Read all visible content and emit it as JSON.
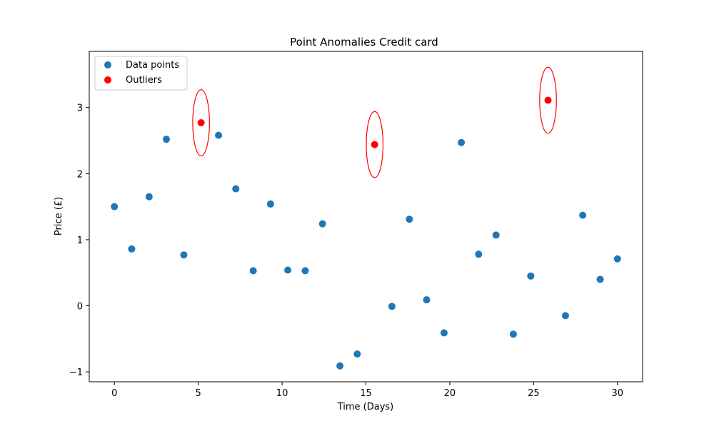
{
  "chart_data": {
    "type": "scatter",
    "title": "Point Anomalies Credit card",
    "xlabel": "Time (Days)",
    "ylabel": "Price (£)",
    "xlim": [
      -1.5,
      31.5
    ],
    "ylim": [
      -1.15,
      3.85
    ],
    "xticks": [
      0,
      5,
      10,
      15,
      20,
      25,
      30
    ],
    "yticks": [
      -1,
      0,
      1,
      2,
      3
    ],
    "ytick_labels": [
      "−1",
      "0",
      "1",
      "2",
      "3"
    ],
    "grid": false,
    "legend_position": "top-left",
    "series": [
      {
        "name": "Data points",
        "color": "#1f77b4",
        "points": [
          [
            0.0,
            1.5
          ],
          [
            1.03,
            0.86
          ],
          [
            2.07,
            1.65
          ],
          [
            3.1,
            2.52
          ],
          [
            4.14,
            0.77
          ],
          [
            6.21,
            2.58
          ],
          [
            7.24,
            1.77
          ],
          [
            8.28,
            0.53
          ],
          [
            9.31,
            1.54
          ],
          [
            10.34,
            0.54
          ],
          [
            11.38,
            0.53
          ],
          [
            12.41,
            1.24
          ],
          [
            13.45,
            -0.91
          ],
          [
            14.48,
            -0.73
          ],
          [
            16.55,
            -0.01
          ],
          [
            17.59,
            1.31
          ],
          [
            18.62,
            0.09
          ],
          [
            19.66,
            -0.41
          ],
          [
            20.69,
            2.47
          ],
          [
            21.72,
            0.78
          ],
          [
            22.76,
            1.07
          ],
          [
            23.79,
            -0.43
          ],
          [
            24.83,
            0.45
          ],
          [
            26.9,
            -0.15
          ],
          [
            27.93,
            1.37
          ],
          [
            28.97,
            0.4
          ],
          [
            30.0,
            0.71
          ]
        ]
      },
      {
        "name": "Outliers",
        "color": "#ff0000",
        "points": [
          [
            5.17,
            2.77
          ],
          [
            15.52,
            2.44
          ],
          [
            25.86,
            3.11
          ]
        ]
      }
    ],
    "annotations": {
      "type": "ellipse",
      "color": "#ff0000",
      "around": "Outliers",
      "width": 1.0,
      "height": 1.0
    }
  }
}
